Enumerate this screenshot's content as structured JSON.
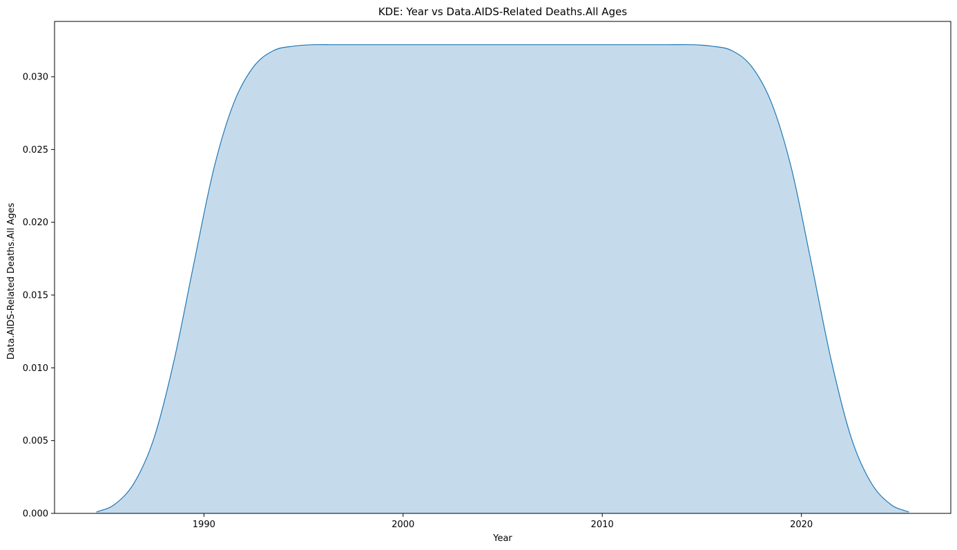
{
  "chart_data": {
    "type": "area",
    "title": "KDE: Year vs Data.AIDS-Related Deaths.All Ages",
    "xlabel": "Year",
    "ylabel": "Data.AIDS-Related Deaths.All Ages",
    "xlim": [
      1982.5,
      2027.5
    ],
    "ylim": [
      0,
      0.0338
    ],
    "xticks": [
      1990,
      2000,
      2010,
      2020
    ],
    "xtick_labels": [
      "1990",
      "2000",
      "2010",
      "2020"
    ],
    "yticks": [
      0,
      0.005,
      0.01,
      0.015,
      0.02,
      0.025,
      0.03
    ],
    "ytick_labels": [
      "0.000",
      "0.005",
      "0.010",
      "0.015",
      "0.020",
      "0.025",
      "0.030"
    ],
    "grid": false,
    "legend": "none",
    "colors": {
      "line": "#1f77b4",
      "fill": "#c5dbec"
    },
    "x": [
      1984.6,
      1985.5,
      1986.5,
      1987.5,
      1988.5,
      1989.5,
      1990.5,
      1991.5,
      1992.5,
      1993.5,
      1994.5,
      1995.5,
      1996.5,
      1998,
      2000,
      2005,
      2010,
      2013,
      2014.5,
      2015.5,
      2016.5,
      2017.5,
      2018.5,
      2019.5,
      2020.5,
      2021.5,
      2022.5,
      2023.5,
      2024.5,
      2025.4
    ],
    "y": [
      0.0001,
      0.0006,
      0.0021,
      0.0052,
      0.0105,
      0.0172,
      0.0237,
      0.0282,
      0.0307,
      0.0318,
      0.0321,
      0.0322,
      0.0322,
      0.0322,
      0.0322,
      0.0322,
      0.0322,
      0.0322,
      0.0322,
      0.0321,
      0.0318,
      0.0307,
      0.0282,
      0.0237,
      0.0172,
      0.0105,
      0.0052,
      0.0021,
      0.0006,
      0.0001
    ]
  }
}
